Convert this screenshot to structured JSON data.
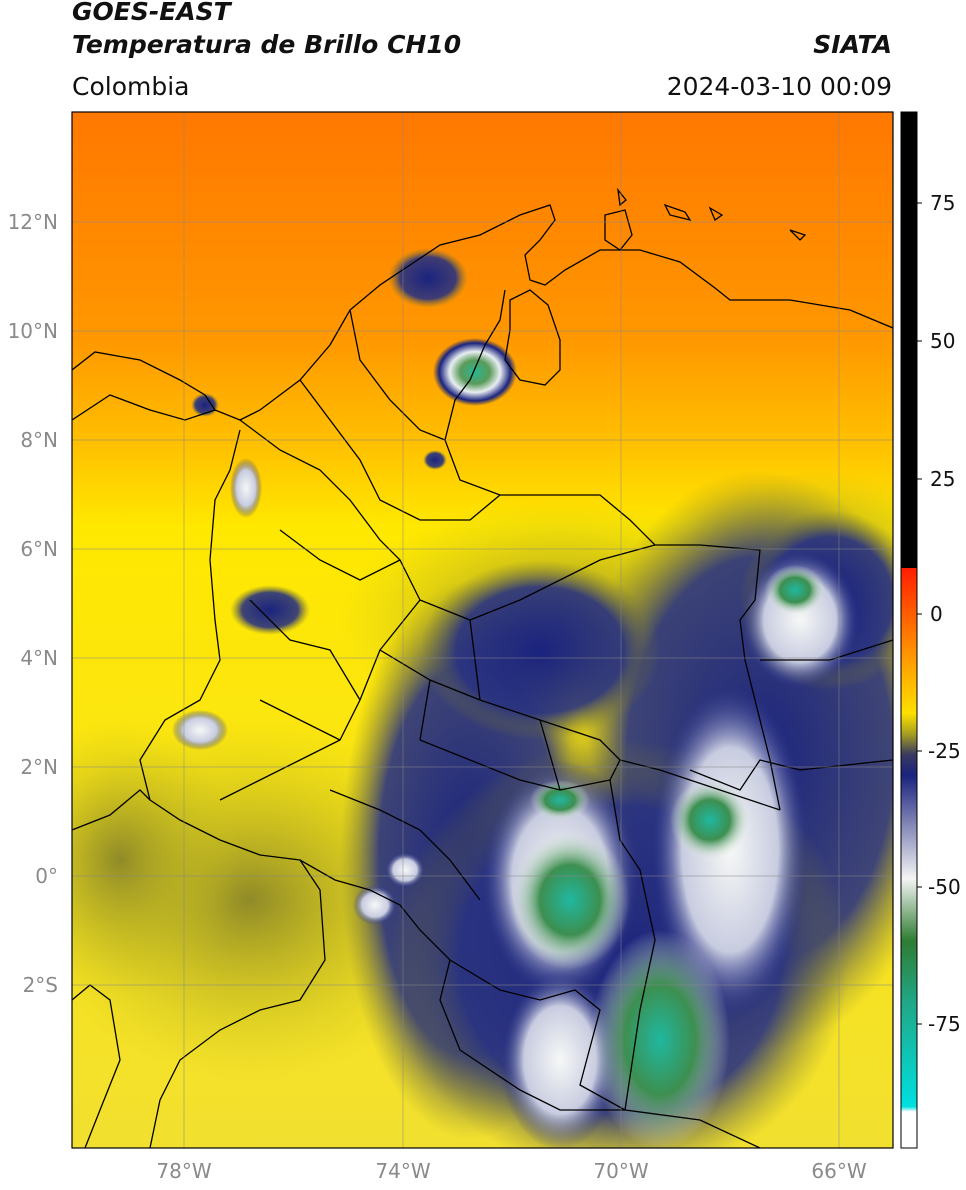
{
  "header": {
    "satellite": "GOES-EAST",
    "product": "Temperatura de Brillo CH10",
    "region": "Colombia",
    "agency": "SIATA",
    "datetime": "2024-03-10 00:09"
  },
  "map": {
    "projection": "PlateCarree",
    "lon_range": [
      -80,
      -65
    ],
    "lat_range": [
      -5,
      14
    ],
    "lon_ticks": [
      "78°W",
      "74°W",
      "70°W",
      "66°W"
    ],
    "lat_ticks": [
      "12°N",
      "10°N",
      "8°N",
      "6°N",
      "4°N",
      "2°N",
      "0°",
      "2°S"
    ],
    "grid": true
  },
  "colorbar": {
    "ticks": [
      "75",
      "50",
      "25",
      "0",
      "-25",
      "-50",
      "-75"
    ],
    "colors": [
      "#ffffff",
      "#00e0e0",
      "#20b090",
      "#2e7d32",
      "#e8f0e8",
      "#1a237e",
      "#a0a020",
      "#ffe000",
      "#ff8c00",
      "#ff2000",
      "#000000"
    ]
  }
}
